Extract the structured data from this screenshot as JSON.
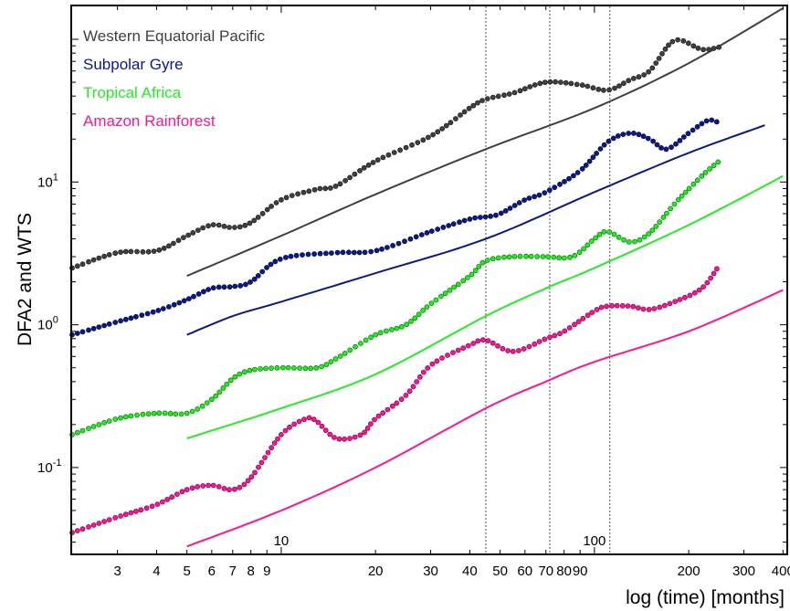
{
  "chart_data": {
    "type": "line",
    "xlabel": "log (time) [months]",
    "ylabel": "DFA2 and WTS",
    "xscale": "log",
    "yscale": "log",
    "xlim": [
      2.15,
      410
    ],
    "ylim": [
      0.025,
      170
    ],
    "grid": false,
    "legend_position": "top-left",
    "x_ticks": [
      {
        "value": 3,
        "label": "3"
      },
      {
        "value": 4,
        "label": "4"
      },
      {
        "value": 5,
        "label": "5"
      },
      {
        "value": 6,
        "label": "6"
      },
      {
        "value": 7,
        "label": "7"
      },
      {
        "value": 8,
        "label": "8"
      },
      {
        "value": 9,
        "label": "9"
      },
      {
        "value": 20,
        "label": "20"
      },
      {
        "value": 30,
        "label": "30"
      },
      {
        "value": 40,
        "label": "40"
      },
      {
        "value": 50,
        "label": "50"
      },
      {
        "value": 60,
        "label": "60"
      },
      {
        "value": 70,
        "label": "70"
      },
      {
        "value": 80,
        "label": "80"
      },
      {
        "value": 90,
        "label": "90"
      },
      {
        "value": 200,
        "label": "200"
      },
      {
        "value": 300,
        "label": "300"
      },
      {
        "value": 400,
        "label": "400"
      }
    ],
    "inner_x_labels": [
      {
        "value": 10,
        "label": "10"
      },
      {
        "value": 100,
        "label": "100"
      }
    ],
    "y_ticks": [
      {
        "value": 0.1,
        "base": "10",
        "exp": "-1"
      },
      {
        "value": 1,
        "base": "10",
        "exp": "0"
      },
      {
        "value": 10,
        "base": "10",
        "exp": "1"
      }
    ],
    "vlines": [
      45,
      72,
      112
    ],
    "series": [
      {
        "name": "Western Equatorial Pacific",
        "color": "#404040",
        "line": {
          "x": [
            5,
            10,
            20,
            45,
            100,
            200,
            400
          ],
          "y": [
            2.2,
            4.2,
            8.2,
            17.0,
            33.0,
            68.0,
            165.0
          ],
          "x_end": 400
        },
        "dots": {
          "x": [
            2.15,
            3,
            4,
            5,
            6,
            7,
            8,
            10,
            13,
            15,
            20,
            30,
            40,
            45,
            55,
            70,
            90,
            110,
            130,
            150,
            180,
            220,
            250
          ],
          "y": [
            2.5,
            3.2,
            3.3,
            4.2,
            5.0,
            4.8,
            5.2,
            7.5,
            8.9,
            9.4,
            14.0,
            21.0,
            33.0,
            38.0,
            42.0,
            50.0,
            48.0,
            44.0,
            52.0,
            60.0,
            98.0,
            85.0,
            88.0
          ]
        }
      },
      {
        "name": "Subpolar Gyre",
        "color": "#0a1a8c",
        "line": {
          "x": [
            5,
            7,
            10,
            20,
            45,
            100,
            200,
            350
          ],
          "y": [
            0.85,
            1.15,
            1.45,
            2.3,
            4.0,
            8.5,
            16.0,
            25.0
          ],
          "x_end": 350
        },
        "dots": {
          "x": [
            2.15,
            3,
            4,
            5,
            6,
            7,
            8,
            10,
            15,
            20,
            30,
            40,
            45,
            50,
            60,
            70,
            90,
            110,
            130,
            150,
            170,
            200,
            230,
            250
          ],
          "y": [
            0.85,
            1.05,
            1.25,
            1.5,
            1.8,
            1.85,
            2.0,
            2.9,
            3.2,
            3.3,
            4.5,
            5.5,
            5.7,
            6.0,
            7.5,
            8.5,
            12.0,
            19.0,
            22.0,
            20.0,
            17.0,
            22.0,
            27.0,
            26.0
          ]
        }
      },
      {
        "name": "Tropical Africa",
        "color": "#22ee22",
        "line": {
          "x": [
            5,
            10,
            20,
            45,
            70,
            100,
            200,
            400
          ],
          "y": [
            0.16,
            0.26,
            0.45,
            1.15,
            1.8,
            2.5,
            5.0,
            11.0
          ],
          "x_end": 400
        },
        "dots": {
          "x": [
            2.15,
            3,
            4,
            5,
            6,
            7,
            8,
            10,
            13,
            15,
            20,
            25,
            30,
            40,
            45,
            55,
            70,
            85,
            100,
            110,
            130,
            150,
            180,
            220,
            250
          ],
          "y": [
            0.17,
            0.22,
            0.24,
            0.24,
            0.3,
            0.42,
            0.48,
            0.5,
            0.5,
            0.58,
            0.85,
            1.0,
            1.4,
            2.2,
            2.8,
            3.0,
            3.0,
            3.0,
            4.0,
            4.5,
            3.8,
            4.4,
            7.0,
            11.0,
            14.0
          ]
        }
      },
      {
        "name": "Amazon Rainforest",
        "color": "#ff1493",
        "line": {
          "x": [
            5,
            10,
            20,
            45,
            70,
            100,
            200,
            400
          ],
          "y": [
            0.028,
            0.05,
            0.1,
            0.26,
            0.4,
            0.55,
            0.9,
            1.75
          ],
          "x_end": 400
        },
        "dots": {
          "x": [
            2.15,
            3,
            4,
            5,
            6,
            7,
            8,
            10,
            12,
            13,
            15,
            18,
            20,
            25,
            30,
            40,
            45,
            55,
            70,
            80,
            100,
            110,
            130,
            150,
            180,
            220,
            250
          ],
          "y": [
            0.035,
            0.045,
            0.055,
            0.07,
            0.075,
            0.07,
            0.085,
            0.17,
            0.22,
            0.21,
            0.16,
            0.17,
            0.22,
            0.32,
            0.52,
            0.72,
            0.78,
            0.65,
            0.8,
            0.9,
            1.25,
            1.35,
            1.35,
            1.28,
            1.45,
            1.8,
            2.6
          ]
        }
      }
    ]
  }
}
